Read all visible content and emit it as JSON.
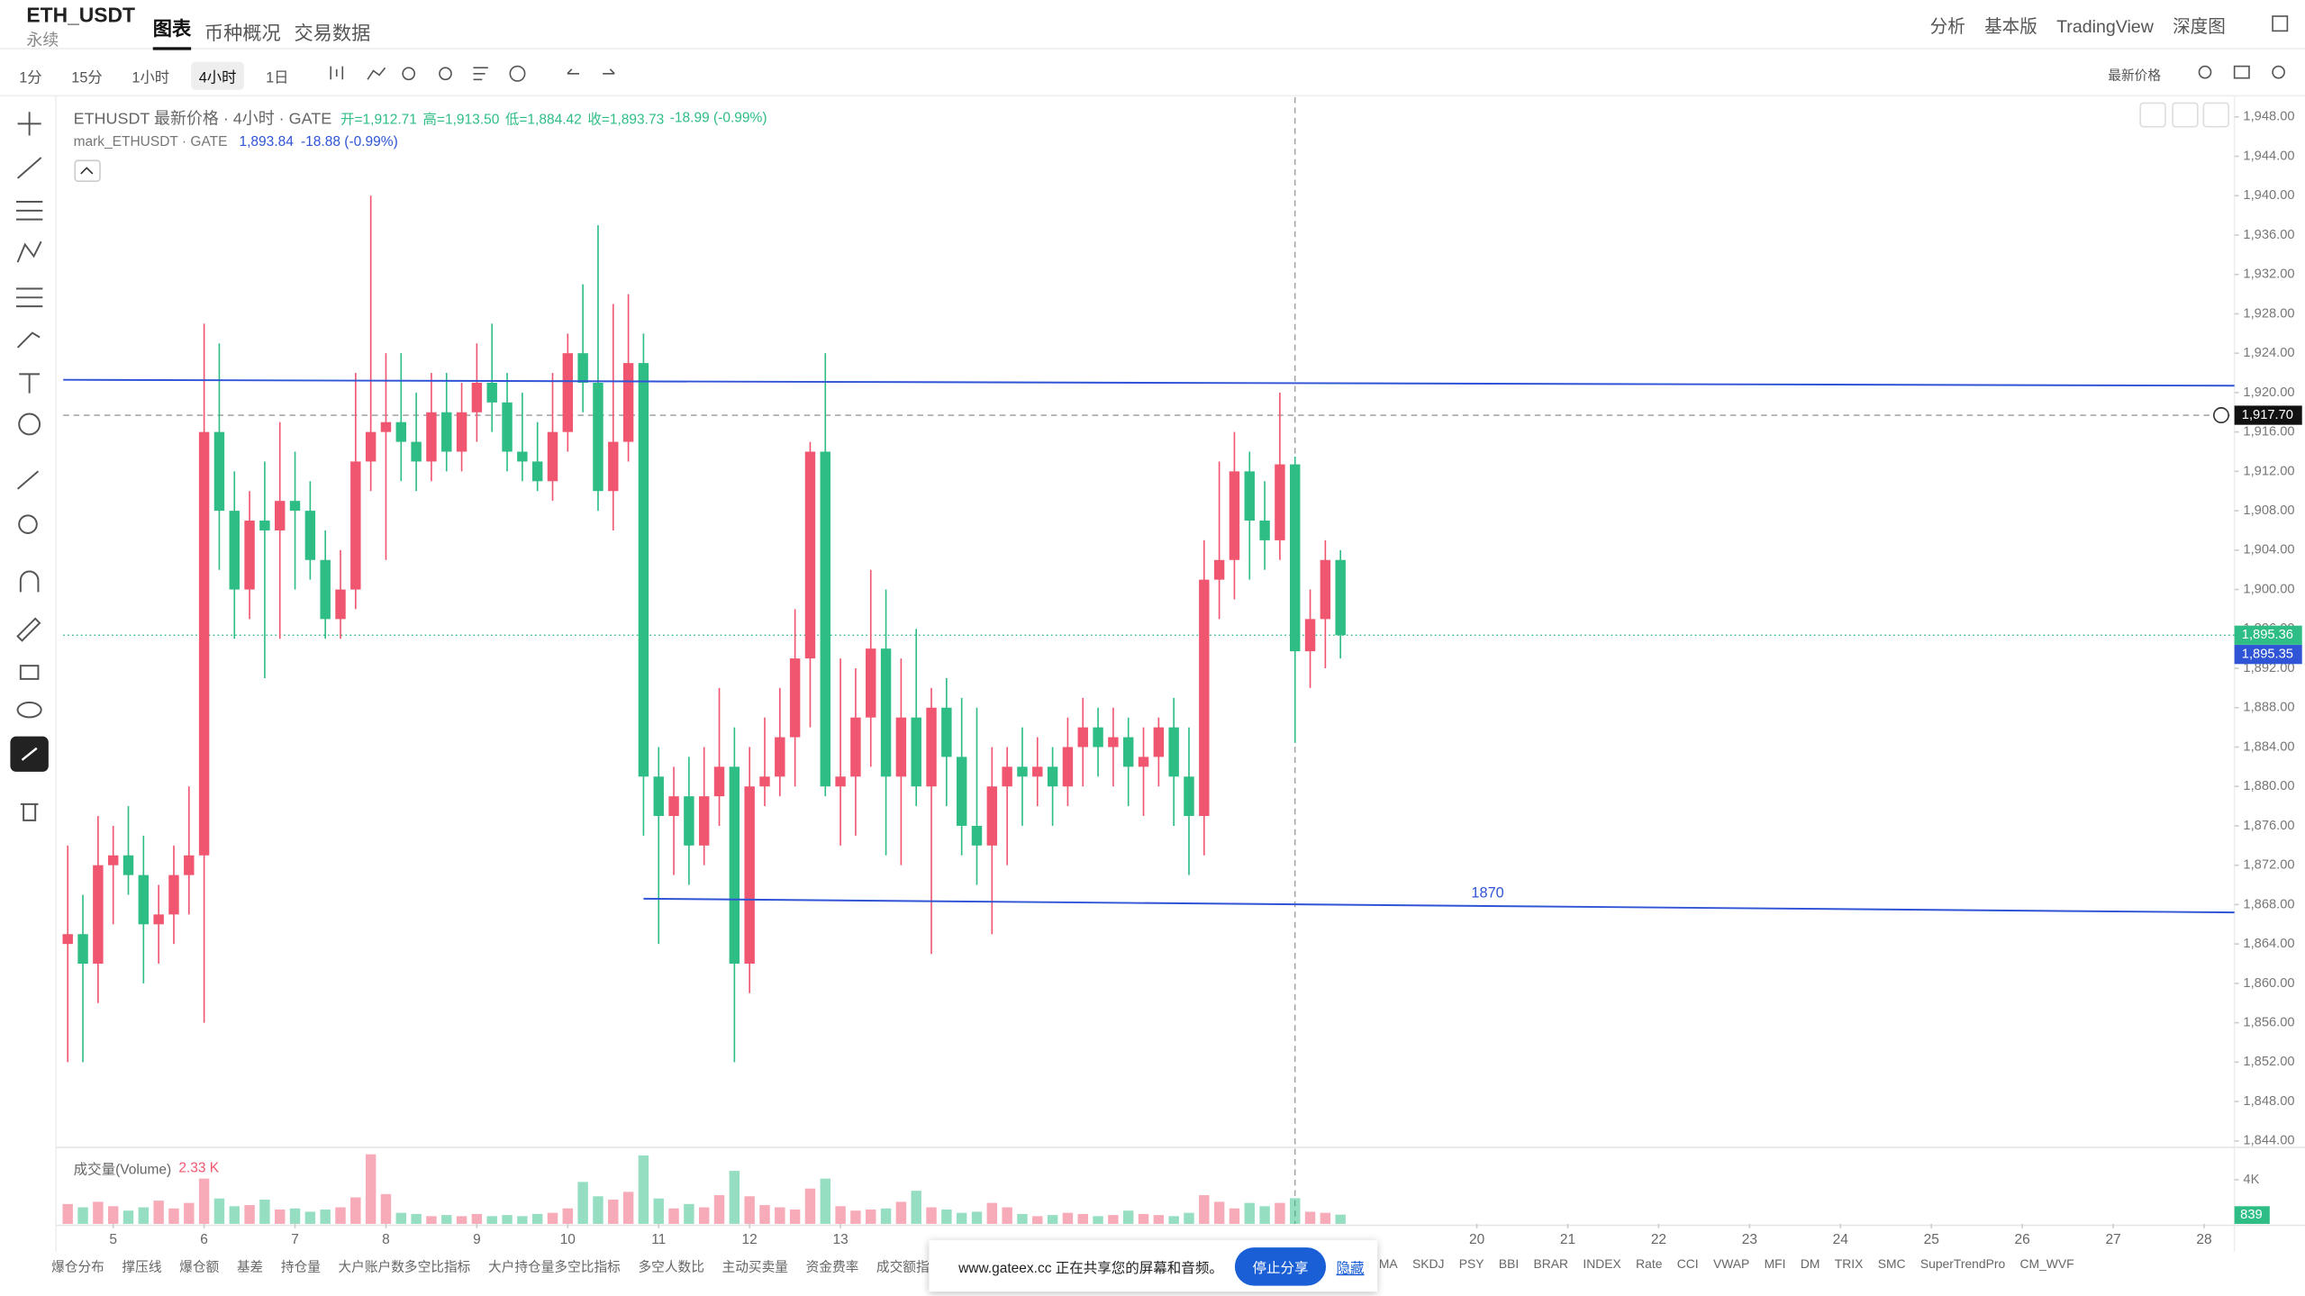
{
  "header": {
    "symbol": "ETH_USDT",
    "contract": "永续",
    "tabs": [
      "图表",
      "币种概况",
      "交易数据"
    ],
    "right_links": [
      "分析",
      "基本版",
      "TradingView",
      "深度图"
    ]
  },
  "toolbar": {
    "intervals": [
      "1分",
      "15分",
      "1小时",
      "4小时",
      "1日"
    ],
    "price_type": "最新价格"
  },
  "chart_data": {
    "type": "candlestick",
    "title": "ETHUSDT 最新价格 · 4小时 · GATE",
    "ohlc_labels": [
      "开=1,912.71",
      "高=1,913.50",
      "低=1,884.42",
      "收=1,893.73"
    ],
    "change": "-18.99 (-0.99%)",
    "mark_title": "mark_ETHUSDT · GATE",
    "mark_value": "1,893.84",
    "mark_change": "-18.88 (-0.99%)",
    "up_color": "#f0566f",
    "down_color": "#2ebd85",
    "candles": [
      [
        1864,
        1874,
        1852,
        1865
      ],
      [
        1865,
        1869,
        1852,
        1862
      ],
      [
        1862,
        1877,
        1858,
        1872
      ],
      [
        1872,
        1876,
        1866,
        1873
      ],
      [
        1873,
        1878,
        1869,
        1871
      ],
      [
        1871,
        1875,
        1860,
        1866
      ],
      [
        1866,
        1870,
        1862,
        1867
      ],
      [
        1867,
        1874,
        1864,
        1871
      ],
      [
        1871,
        1880,
        1867,
        1873
      ],
      [
        1873,
        1927,
        1856,
        1916
      ],
      [
        1916,
        1925,
        1902,
        1908
      ],
      [
        1908,
        1912,
        1895,
        1900
      ],
      [
        1900,
        1910,
        1897,
        1907
      ],
      [
        1907,
        1913,
        1891,
        1906
      ],
      [
        1906,
        1917,
        1895,
        1909
      ],
      [
        1909,
        1914,
        1900,
        1908
      ],
      [
        1908,
        1911,
        1901,
        1903
      ],
      [
        1903,
        1906,
        1895,
        1897
      ],
      [
        1897,
        1904,
        1895,
        1900
      ],
      [
        1900,
        1922,
        1898,
        1913
      ],
      [
        1913,
        1940,
        1910,
        1916
      ],
      [
        1916,
        1924,
        1903,
        1917
      ],
      [
        1917,
        1924,
        1911,
        1915
      ],
      [
        1915,
        1920,
        1910,
        1913
      ],
      [
        1913,
        1922,
        1911,
        1918
      ],
      [
        1918,
        1922,
        1912,
        1914
      ],
      [
        1914,
        1921,
        1912,
        1918
      ],
      [
        1918,
        1925,
        1915,
        1921
      ],
      [
        1921,
        1927,
        1916,
        1919
      ],
      [
        1919,
        1922,
        1912,
        1914
      ],
      [
        1914,
        1920,
        1911,
        1913
      ],
      [
        1913,
        1917,
        1910,
        1911
      ],
      [
        1911,
        1922,
        1909,
        1916
      ],
      [
        1916,
        1926,
        1914,
        1924
      ],
      [
        1924,
        1931,
        1918,
        1921
      ],
      [
        1921,
        1937,
        1908,
        1910
      ],
      [
        1910,
        1929,
        1906,
        1915
      ],
      [
        1915,
        1930,
        1913,
        1923
      ],
      [
        1923,
        1926,
        1875,
        1881
      ],
      [
        1881,
        1884,
        1864,
        1877
      ],
      [
        1877,
        1882,
        1871,
        1879
      ],
      [
        1879,
        1883,
        1870,
        1874
      ],
      [
        1874,
        1884,
        1872,
        1879
      ],
      [
        1879,
        1890,
        1876,
        1882
      ],
      [
        1882,
        1886,
        1852,
        1862
      ],
      [
        1862,
        1884,
        1859,
        1880
      ],
      [
        1880,
        1887,
        1878,
        1881
      ],
      [
        1881,
        1890,
        1879,
        1885
      ],
      [
        1885,
        1898,
        1880,
        1893
      ],
      [
        1893,
        1915,
        1886,
        1914
      ],
      [
        1914,
        1924,
        1879,
        1880
      ],
      [
        1880,
        1893,
        1874,
        1881
      ],
      [
        1881,
        1892,
        1875,
        1887
      ],
      [
        1887,
        1902,
        1882,
        1894
      ],
      [
        1894,
        1900,
        1873,
        1881
      ],
      [
        1881,
        1893,
        1872,
        1887
      ],
      [
        1887,
        1896,
        1878,
        1880
      ],
      [
        1880,
        1890,
        1863,
        1888
      ],
      [
        1888,
        1891,
        1878,
        1883
      ],
      [
        1883,
        1889,
        1873,
        1876
      ],
      [
        1876,
        1888,
        1870,
        1874
      ],
      [
        1874,
        1884,
        1865,
        1880
      ],
      [
        1880,
        1884,
        1872,
        1882
      ],
      [
        1882,
        1886,
        1876,
        1881
      ],
      [
        1881,
        1885,
        1878,
        1882
      ],
      [
        1882,
        1884,
        1876,
        1880
      ],
      [
        1880,
        1887,
        1878,
        1884
      ],
      [
        1884,
        1889,
        1880,
        1886
      ],
      [
        1886,
        1888,
        1881,
        1884
      ],
      [
        1884,
        1888,
        1880,
        1885
      ],
      [
        1885,
        1887,
        1878,
        1882
      ],
      [
        1882,
        1886,
        1877,
        1883
      ],
      [
        1883,
        1887,
        1880,
        1886
      ],
      [
        1886,
        1889,
        1876,
        1881
      ],
      [
        1881,
        1886,
        1871,
        1877
      ],
      [
        1877,
        1905,
        1873,
        1901
      ],
      [
        1901,
        1913,
        1897,
        1903
      ],
      [
        1903,
        1916,
        1899,
        1912
      ],
      [
        1912,
        1914,
        1901,
        1907
      ],
      [
        1907,
        1911,
        1902,
        1905
      ],
      [
        1905,
        1920,
        1903,
        1912.71
      ],
      [
        1912.71,
        1913.5,
        1884.42,
        1893.73
      ],
      [
        1893.73,
        1900,
        1890,
        1897
      ],
      [
        1897,
        1905,
        1892,
        1903
      ],
      [
        1903,
        1904,
        1893,
        1895.36
      ]
    ],
    "xlim": [
      -0.3,
      143
    ],
    "xticks": [
      {
        "value": 3,
        "label": "5"
      },
      {
        "value": 9,
        "label": "6"
      },
      {
        "value": 15,
        "label": "7"
      },
      {
        "value": 21,
        "label": "8"
      },
      {
        "value": 27,
        "label": "9"
      },
      {
        "value": 33,
        "label": "10"
      },
      {
        "value": 39,
        "label": "11"
      },
      {
        "value": 45,
        "label": "12"
      },
      {
        "value": 51,
        "label": "13"
      },
      {
        "value": 93,
        "label": "20"
      },
      {
        "value": 99,
        "label": "21"
      },
      {
        "value": 105,
        "label": "22"
      },
      {
        "value": 111,
        "label": "23"
      },
      {
        "value": 117,
        "label": "24"
      },
      {
        "value": 123,
        "label": "25"
      },
      {
        "value": 129,
        "label": "26"
      },
      {
        "value": 135,
        "label": "27"
      },
      {
        "value": 141,
        "label": "28"
      }
    ],
    "ylim": [
      1843.5,
      1950
    ],
    "yticks": [
      {
        "value": 1844,
        "label": "1,844.00"
      },
      {
        "value": 1848,
        "label": "1,848.00"
      },
      {
        "value": 1852,
        "label": "1,852.00"
      },
      {
        "value": 1856,
        "label": "1,856.00"
      },
      {
        "value": 1860,
        "label": "1,860.00"
      },
      {
        "value": 1864,
        "label": "1,864.00"
      },
      {
        "value": 1868,
        "label": "1,868.00"
      },
      {
        "value": 1872,
        "label": "1,872.00"
      },
      {
        "value": 1876,
        "label": "1,876.00"
      },
      {
        "value": 1880,
        "label": "1,880.00"
      },
      {
        "value": 1884,
        "label": "1,884.00"
      },
      {
        "value": 1888,
        "label": "1,888.00"
      },
      {
        "value": 1892,
        "label": "1,892.00"
      },
      {
        "value": 1896,
        "label": "1,896.00"
      },
      {
        "value": 1900,
        "label": "1,900.00"
      },
      {
        "value": 1904,
        "label": "1,904.00"
      },
      {
        "value": 1908,
        "label": "1,908.00"
      },
      {
        "value": 1912,
        "label": "1,912.00"
      },
      {
        "value": 1916,
        "label": "1,916.00"
      },
      {
        "value": 1920,
        "label": "1,920.00"
      },
      {
        "value": 1924,
        "label": "1,924.00"
      },
      {
        "value": 1928,
        "label": "1,928.00"
      },
      {
        "value": 1932,
        "label": "1,932.00"
      },
      {
        "value": 1936,
        "label": "1,936.00"
      },
      {
        "value": 1940,
        "label": "1,940.00"
      },
      {
        "value": 1944,
        "label": "1,944.00"
      },
      {
        "value": 1948,
        "label": "1,948.00"
      }
    ],
    "trend_lines": [
      {
        "start": 1921.3,
        "end": 1920.7,
        "color": "#2f54d6"
      },
      {
        "start": 1868.6,
        "end": 1867.2,
        "label": "1870",
        "color": "#2f54d6"
      }
    ],
    "crosshair": {
      "value": 1917.7,
      "label": "1,917.70"
    },
    "last_price": {
      "value": 1895.36,
      "label": "1,895.36",
      "color": "#2ebd85"
    },
    "mark_price": {
      "value": 1895.35,
      "label": "1,895.35",
      "color": "#2f54d6"
    },
    "volume": {
      "title": "成交量(Volume)",
      "current": "2.33 K",
      "values": [
        1800,
        1500,
        2000,
        1600,
        1200,
        1500,
        2100,
        1400,
        1900,
        4100,
        2300,
        1600,
        1700,
        2200,
        1300,
        1400,
        1100,
        1300,
        1500,
        2400,
        6300,
        2700,
        1000,
        900,
        700,
        800,
        700,
        900,
        700,
        800,
        700,
        900,
        1000,
        1400,
        3800,
        2500,
        2200,
        2900,
        6200,
        2300,
        1400,
        1800,
        1500,
        2600,
        4800,
        2500,
        1700,
        1500,
        1300,
        3200,
        4100,
        1600,
        1200,
        1300,
        1400,
        2000,
        3000,
        1500,
        1300,
        1000,
        1100,
        1900,
        1500,
        900,
        700,
        800,
        1000,
        900,
        700,
        800,
        1200,
        900,
        800,
        700,
        1000,
        2600,
        2000,
        1400,
        1900,
        1600,
        1900,
        2330,
        1100,
        1000,
        839
      ],
      "ylim": [
        0,
        6400
      ],
      "yticks": [
        {
          "value": 4000,
          "label": "4K"
        }
      ]
    }
  },
  "bottom_tabs_left": [
    "爆仓分布",
    "撑压线",
    "爆仓额",
    "基差",
    "持仓量",
    "大户账户数多空比指标",
    "大户持仓量多空比指标",
    "多空人数比",
    "主动买卖量",
    "资金费率",
    "成交额指标"
  ],
  "bottom_tabs_right": [
    "MA",
    "SKDJ",
    "PSY",
    "BBI",
    "BRAR",
    "INDEX",
    "Rate",
    "CCI",
    "VWAP",
    "MFI",
    "DM",
    "TRIX",
    "SMC",
    "SuperTrendPro",
    "CM_WVF"
  ],
  "share_bar": {
    "message": "www.gateex.cc 正在共享您的屏幕和音频。",
    "stop": "停止分享",
    "hide": "隐藏"
  }
}
